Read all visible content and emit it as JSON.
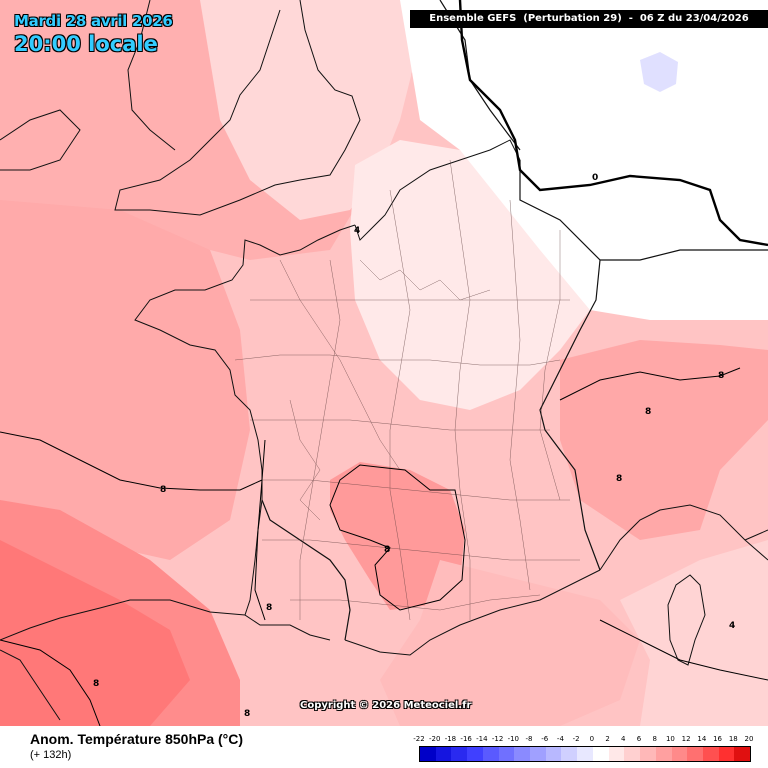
{
  "header": {
    "date": "Mardi 28 avril 2026",
    "local_time": "20:00 locale",
    "run_info": "Ensemble GEFS  (Perturbation 29)  -  06 Z du 23/04/2026"
  },
  "map": {
    "copyright": "Copyright © 2026 Meteociel.fr",
    "isoline_labels": [
      "0",
      "4",
      "8",
      "8",
      "8",
      "8",
      "8",
      "8",
      "8",
      "8",
      "4"
    ]
  },
  "footer": {
    "variable_title": "Anom. Température 850hPa (°C)",
    "lead_time": "(+ 132h)"
  },
  "scale": {
    "labels": [
      "-22",
      "-20",
      "-18",
      "-16",
      "-14",
      "-12",
      "-10",
      "-8",
      "-6",
      "-4",
      "-2",
      "0",
      "2",
      "4",
      "6",
      "8",
      "10",
      "12",
      "14",
      "16",
      "18",
      "20"
    ],
    "colors": [
      "#0000c8",
      "#1515e0",
      "#2a2af0",
      "#4040ff",
      "#5a5aff",
      "#7070ff",
      "#8a8aff",
      "#a0a0ff",
      "#b8b8ff",
      "#d0d0ff",
      "#e8e8ff",
      "#ffffff",
      "#ffe8e8",
      "#ffd0d0",
      "#ffb8b8",
      "#ffa0a0",
      "#ff8a8a",
      "#ff7070",
      "#ff5050",
      "#ff3030",
      "#e01010"
    ]
  }
}
